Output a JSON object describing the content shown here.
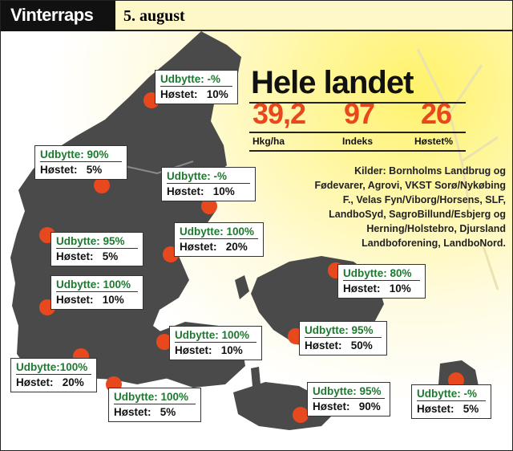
{
  "header": {
    "title": "Vinterraps",
    "date": "5. august"
  },
  "summary": {
    "title": "Hele landet",
    "values": [
      {
        "value": "39,2",
        "label": "Hkg/ha"
      },
      {
        "value": "97",
        "label": "Indeks"
      },
      {
        "value": "26",
        "label": "Høstet%"
      }
    ]
  },
  "sources": {
    "label": "Kilder:",
    "text": "Bornholms Landbrug og Fødevarer, Agrovi, VKST Sorø/Nykøbing F., Velas Fyn/Viborg/Horsens, SLF, LandboSyd, SagroBillund/Esbjerg og Herning/Holstebro, Djursland Landboforening, LandboNord."
  },
  "colors": {
    "dot": "#e8481e",
    "value": "#e8481e",
    "udbytte": "#1c7a2e",
    "map": "#4a4a4a"
  },
  "regions": [
    {
      "udbytte": "Udbytte: -%",
      "hostet": "Høstet:   10%"
    },
    {
      "udbytte": "Udbytte: 90%",
      "hostet": "Høstet:   5%"
    },
    {
      "udbytte": "Udbytte: -%",
      "hostet": "Høstet:   10%"
    },
    {
      "udbytte": "Udbytte: 100%",
      "hostet": "Høstet:   20%"
    },
    {
      "udbytte": "Udbytte: 95%",
      "hostet": "Høstet:   5%"
    },
    {
      "udbytte": "Udbytte: 80%",
      "hostet": "Høstet:   10%"
    },
    {
      "udbytte": "Udbytte: 100%",
      "hostet": "Høstet:   10%"
    },
    {
      "udbytte": "Udbytte: 100%",
      "hostet": "Høstet:   10%"
    },
    {
      "udbytte": "Udbytte: 95%",
      "hostet": "Høstet:   50%"
    },
    {
      "udbytte": "Udbytte:100%",
      "hostet": "Høstet:   20%"
    },
    {
      "udbytte": "Udbytte: 100%",
      "hostet": "Høstet:   5%"
    },
    {
      "udbytte": "Udbytte: 95%",
      "hostet": "Høstet:   90%"
    },
    {
      "udbytte": "Udbytte: -%",
      "hostet": "Høstet:   5%"
    }
  ]
}
